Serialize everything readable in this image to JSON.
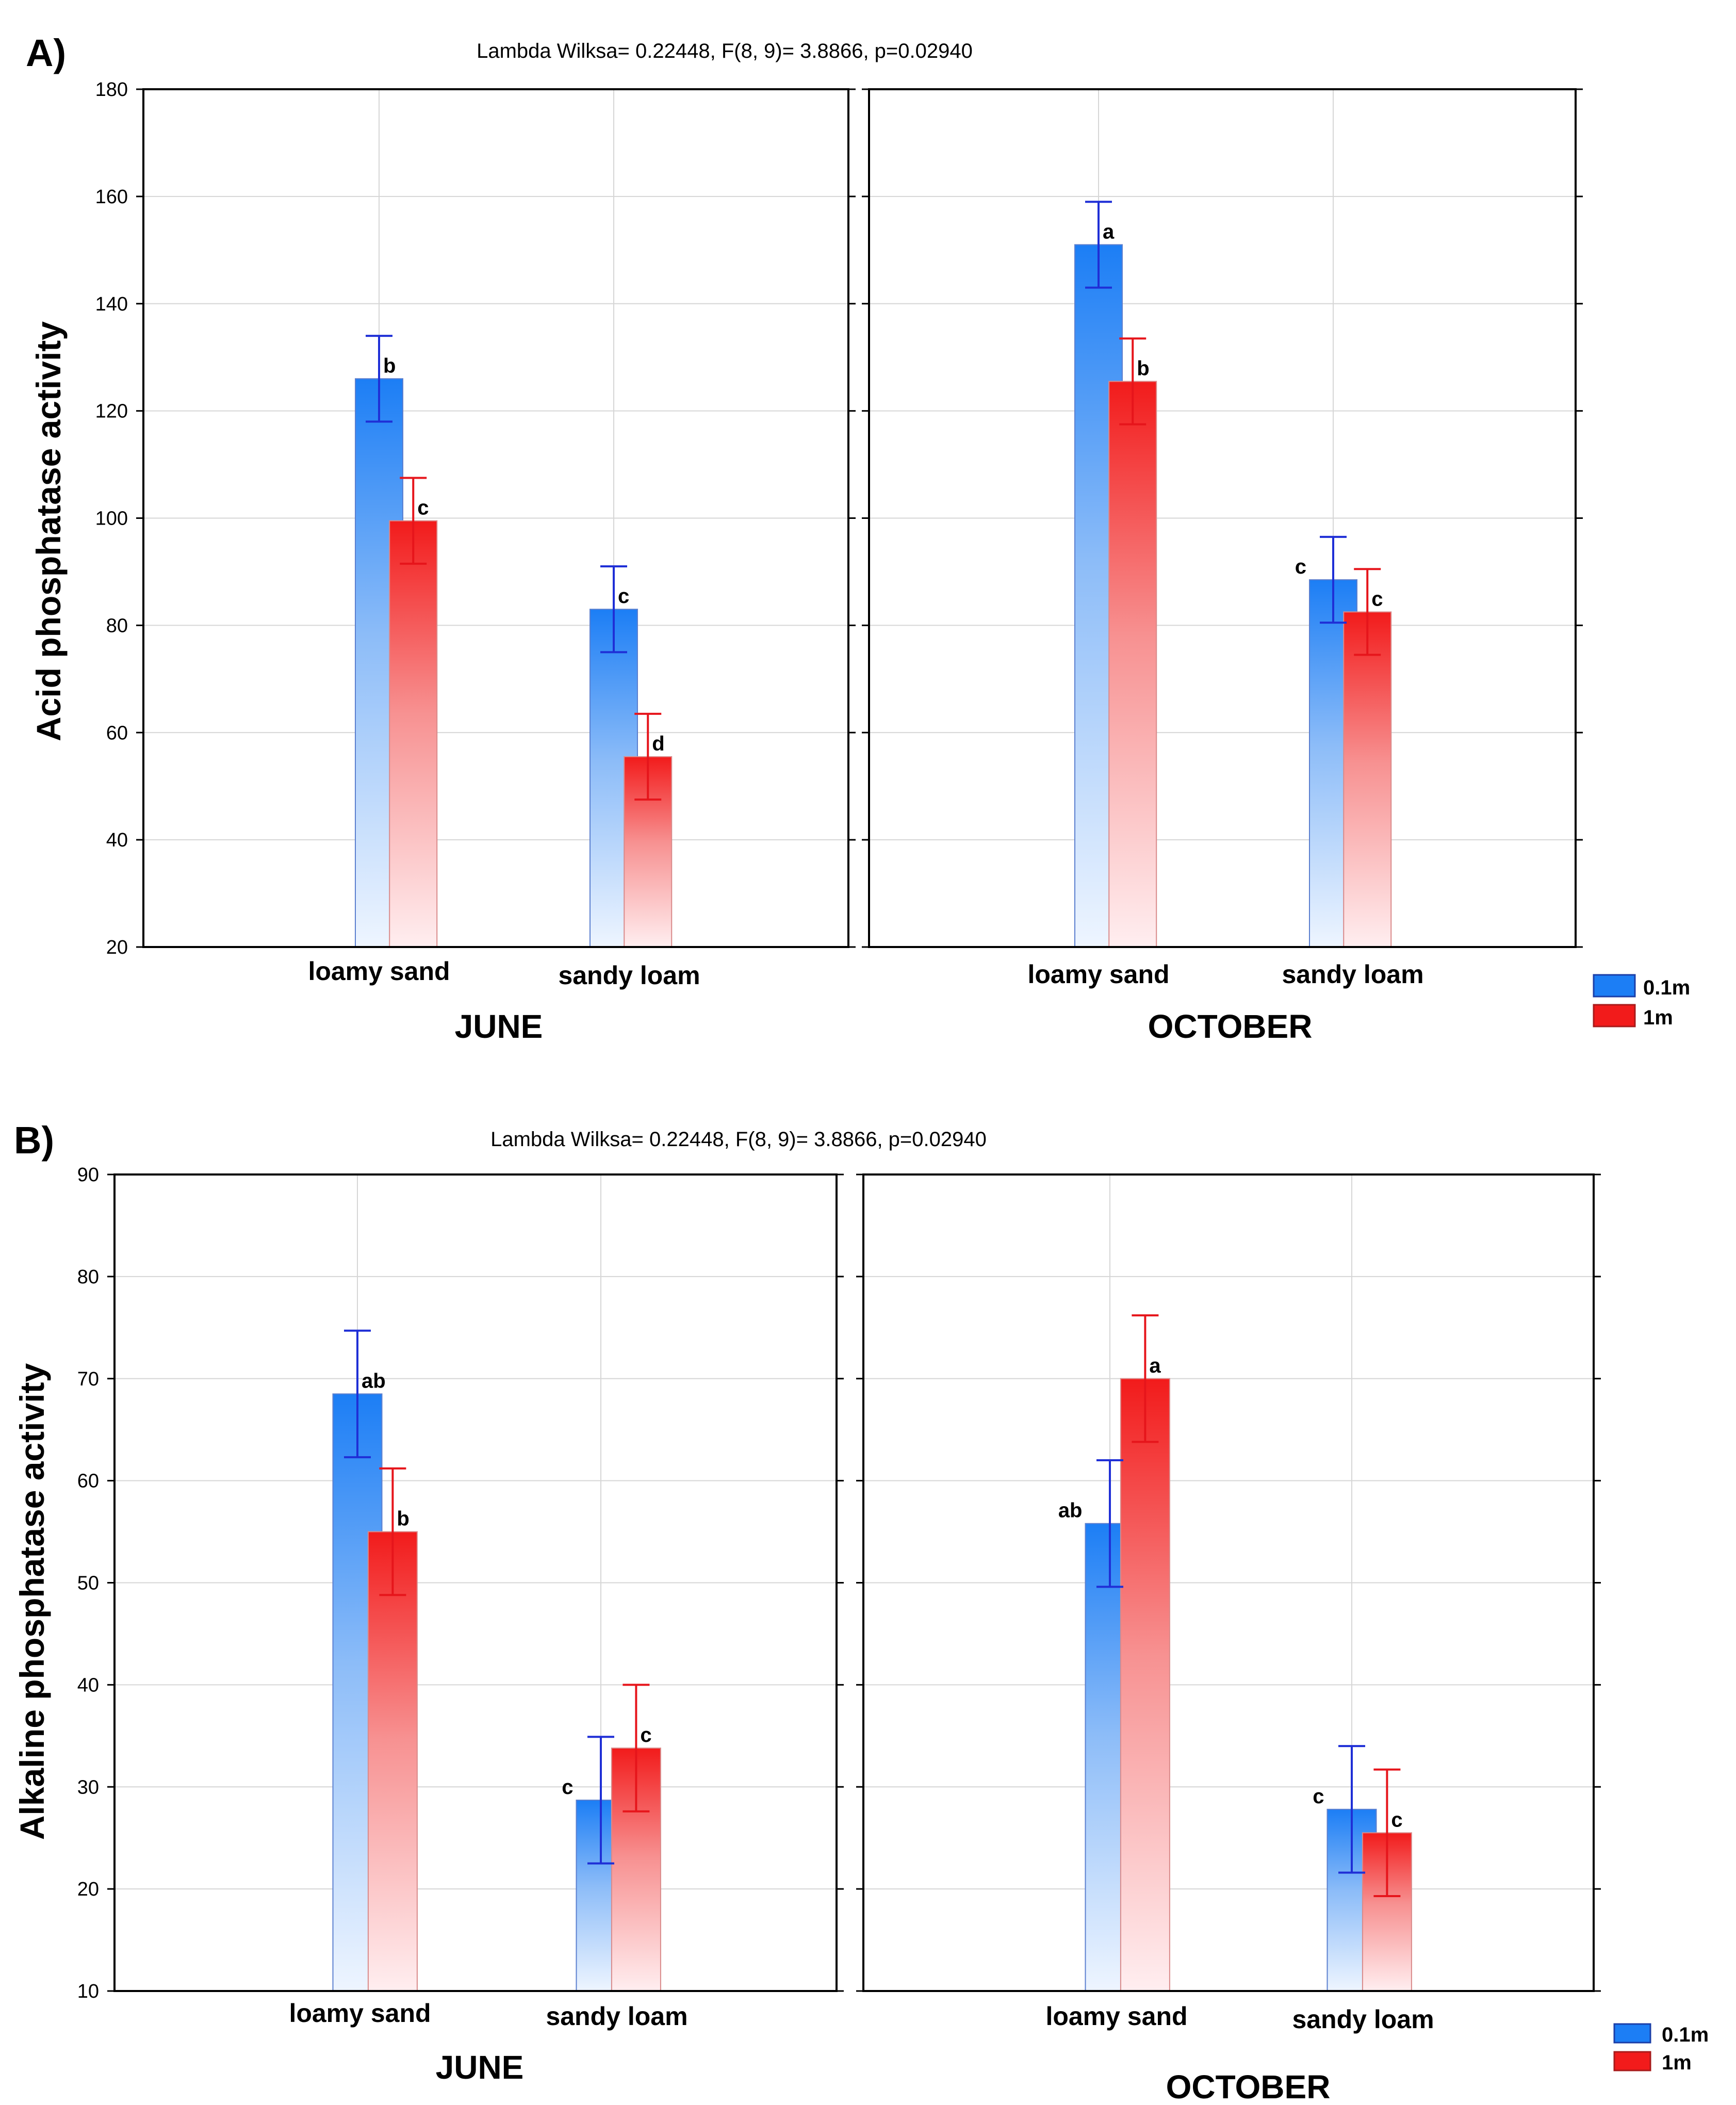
{
  "colors": {
    "depth_0_1m": "#1c7ef5",
    "depth_1m": "#f21b1b",
    "err_0_1m": "#1f2fd6",
    "err_1m": "#e6151b",
    "grid": "#d6d6d6",
    "axis": "#000000"
  },
  "chart_data": [
    {
      "type": "bar",
      "panel_label": "A)",
      "title": "Lambda Wilksa= 0.22448, F(8, 9)= 3.8866, p=0.02940",
      "ylabel": "Acid phosphatase activity",
      "ylim": [
        20,
        180
      ],
      "yticks": [
        20,
        40,
        60,
        80,
        100,
        120,
        140,
        160,
        180
      ],
      "categories": [
        "loamy sand",
        "sandy loam"
      ],
      "legend": [
        "0.1m",
        "1m"
      ],
      "legend_position": "right",
      "facets": [
        {
          "name": "JUNE",
          "series": [
            {
              "name": "0.1m",
              "values": [
                126,
                83
              ],
              "err": [
                8,
                8
              ],
              "letters": [
                "b",
                "c"
              ]
            },
            {
              "name": "1m",
              "values": [
                99.5,
                55.5
              ],
              "err": [
                8,
                8
              ],
              "letters": [
                "c",
                "d"
              ]
            }
          ]
        },
        {
          "name": "OCTOBER",
          "series": [
            {
              "name": "0.1m",
              "values": [
                151,
                88.5
              ],
              "err": [
                8,
                8
              ],
              "letters": [
                "a",
                "c"
              ]
            },
            {
              "name": "1m",
              "values": [
                125.5,
                82.5
              ],
              "err": [
                8,
                8
              ],
              "letters": [
                "b",
                "c"
              ]
            }
          ]
        }
      ]
    },
    {
      "type": "bar",
      "panel_label": "B)",
      "title": "Lambda Wilksa= 0.22448, F(8, 9)= 3.8866, p=0.02940",
      "ylabel": "Alkaline phosphatase activity",
      "ylim": [
        10,
        90
      ],
      "yticks": [
        10,
        20,
        30,
        40,
        50,
        60,
        70,
        80,
        90
      ],
      "categories": [
        "loamy sand",
        "sandy loam"
      ],
      "legend": [
        "0.1m",
        "1m"
      ],
      "legend_position": "right",
      "facets": [
        {
          "name": "JUNE",
          "series": [
            {
              "name": "0.1m",
              "values": [
                68.5,
                28.7
              ],
              "err": [
                6.2,
                6.2
              ],
              "letters": [
                "ab",
                "c"
              ]
            },
            {
              "name": "1m",
              "values": [
                55,
                33.8
              ],
              "err": [
                6.2,
                6.2
              ],
              "letters": [
                "b",
                "c"
              ]
            }
          ]
        },
        {
          "name": "OCTOBER",
          "series": [
            {
              "name": "0.1m",
              "values": [
                55.8,
                27.8
              ],
              "err": [
                6.2,
                6.2
              ],
              "letters": [
                "ab",
                "c"
              ]
            },
            {
              "name": "1m",
              "values": [
                70,
                25.5
              ],
              "err": [
                6.2,
                6.2
              ],
              "letters": [
                "a",
                "c"
              ]
            }
          ]
        }
      ]
    }
  ]
}
